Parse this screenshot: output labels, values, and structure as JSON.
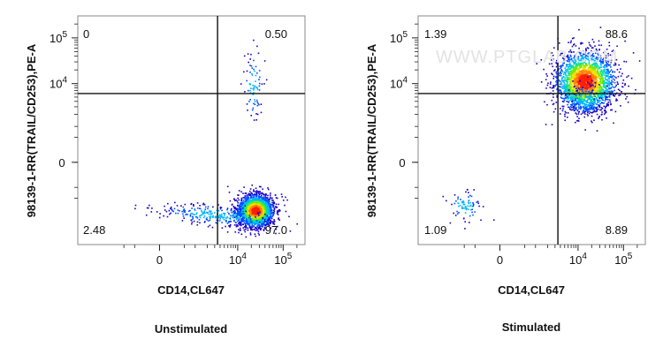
{
  "chart_data": [
    {
      "type": "scatter",
      "subtype": "flow-cytometry-density-plot",
      "caption": "Unstimulated",
      "xlabel": "CD14,CL647",
      "ylabel": "98139-1-RR(TRAIL/CD253),PE-A",
      "x_scale": "biexponential",
      "y_scale": "biexponential",
      "x_ticks": [
        {
          "label": "0",
          "value": 0
        },
        {
          "label": "10",
          "exp": "4",
          "value": 10000
        },
        {
          "label": "10",
          "exp": "5",
          "value": 100000
        }
      ],
      "y_ticks": [
        {
          "label": "0",
          "value": 0
        },
        {
          "label": "10",
          "exp": "4",
          "value": 10000
        },
        {
          "label": "10",
          "exp": "5",
          "value": 100000
        }
      ],
      "gate": {
        "x": 3500,
        "y": 6000
      },
      "quadrants": {
        "upper_left": "0",
        "upper_right": "0.50",
        "lower_left": "2.48",
        "lower_right": "97.0"
      },
      "populations": [
        {
          "name": "main",
          "x": 24000,
          "y": -2000,
          "weight": 0.85
        },
        {
          "name": "tail",
          "x": 3000,
          "y": -2500,
          "weight": 0.12
        },
        {
          "name": "upper",
          "x": 22000,
          "y": 9000,
          "weight": 0.03
        }
      ]
    },
    {
      "type": "scatter",
      "subtype": "flow-cytometry-density-plot",
      "caption": "Stimulated",
      "xlabel": "CD14,CL647",
      "ylabel": "98139-1-RR(TRAIL/CD253),PE-A",
      "x_scale": "biexponential",
      "y_scale": "biexponential",
      "x_ticks": [
        {
          "label": "0",
          "value": 0
        },
        {
          "label": "10",
          "exp": "4",
          "value": 10000
        },
        {
          "label": "10",
          "exp": "5",
          "value": 100000
        }
      ],
      "y_ticks": [
        {
          "label": "0",
          "value": 0
        },
        {
          "label": "10",
          "exp": "4",
          "value": 10000
        },
        {
          "label": "10",
          "exp": "5",
          "value": 100000
        }
      ],
      "gate": {
        "x": 3500,
        "y": 6000
      },
      "quadrants": {
        "upper_left": "1.39",
        "upper_right": "88.6",
        "lower_left": "1.09",
        "lower_right": "8.89"
      },
      "populations": [
        {
          "name": "main",
          "x": 14000,
          "y": 11500,
          "weight": 0.9
        },
        {
          "name": "low",
          "x": 14000,
          "y": 4500,
          "weight": 0.07
        },
        {
          "name": "negative",
          "x": -1000,
          "y": -1500,
          "weight": 0.03
        }
      ]
    }
  ],
  "watermark": "WWW.PTGLAB.COM",
  "colors": {
    "density_scale": [
      "#1a00c8",
      "#0050ff",
      "#00b4ff",
      "#00e0a0",
      "#7ae800",
      "#f0e000",
      "#ff8000",
      "#ff1e00"
    ],
    "gate_line": "#111111",
    "frame": "#888888"
  }
}
